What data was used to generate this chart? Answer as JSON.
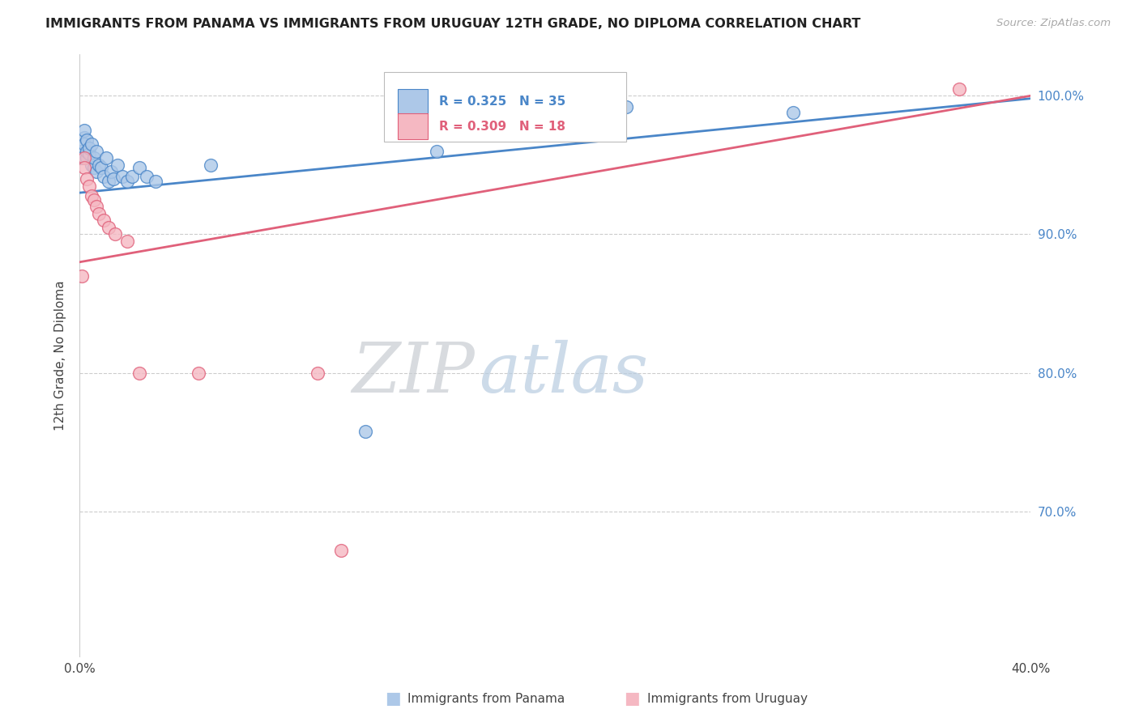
{
  "title": "IMMIGRANTS FROM PANAMA VS IMMIGRANTS FROM URUGUAY 12TH GRADE, NO DIPLOMA CORRELATION CHART",
  "source": "Source: ZipAtlas.com",
  "ylabel_label": "12th Grade, No Diploma",
  "x_min": 0.0,
  "x_max": 0.4,
  "y_min": 0.595,
  "y_max": 1.03,
  "ytick_labels": [
    "100.0%",
    "90.0%",
    "80.0%",
    "70.0%"
  ],
  "ytick_values": [
    1.0,
    0.9,
    0.8,
    0.7
  ],
  "xtick_labels": [
    "0.0%",
    "",
    "",
    "",
    "",
    "40.0%"
  ],
  "xtick_values": [
    0.0,
    0.08,
    0.16,
    0.24,
    0.32,
    0.4
  ],
  "panama_R": 0.325,
  "panama_N": 35,
  "uruguay_R": 0.309,
  "uruguay_N": 18,
  "panama_color": "#adc8e8",
  "panama_line_color": "#4a86c8",
  "uruguay_color": "#f5b8c2",
  "uruguay_line_color": "#e0607a",
  "panama_scatter_x": [
    0.001,
    0.001,
    0.002,
    0.002,
    0.002,
    0.003,
    0.003,
    0.003,
    0.004,
    0.004,
    0.005,
    0.005,
    0.006,
    0.006,
    0.007,
    0.007,
    0.008,
    0.009,
    0.01,
    0.011,
    0.012,
    0.013,
    0.014,
    0.016,
    0.018,
    0.02,
    0.022,
    0.025,
    0.028,
    0.032,
    0.055,
    0.12,
    0.15,
    0.23,
    0.3
  ],
  "panama_scatter_y": [
    0.96,
    0.955,
    0.97,
    0.975,
    0.965,
    0.955,
    0.96,
    0.968,
    0.958,
    0.962,
    0.95,
    0.965,
    0.948,
    0.955,
    0.945,
    0.96,
    0.95,
    0.948,
    0.942,
    0.955,
    0.938,
    0.945,
    0.94,
    0.95,
    0.942,
    0.938,
    0.942,
    0.948,
    0.942,
    0.938,
    0.95,
    0.758,
    0.96,
    0.992,
    0.988
  ],
  "uruguay_scatter_x": [
    0.001,
    0.002,
    0.002,
    0.003,
    0.004,
    0.005,
    0.006,
    0.007,
    0.008,
    0.01,
    0.012,
    0.015,
    0.02,
    0.025,
    0.05,
    0.1,
    0.11,
    0.37
  ],
  "uruguay_scatter_y": [
    0.87,
    0.955,
    0.948,
    0.94,
    0.935,
    0.928,
    0.925,
    0.92,
    0.915,
    0.91,
    0.905,
    0.9,
    0.895,
    0.8,
    0.8,
    0.8,
    0.672,
    1.005
  ],
  "panama_trendline_x": [
    0.0,
    0.4
  ],
  "panama_trendline_y": [
    0.93,
    0.998
  ],
  "uruguay_trendline_x": [
    0.0,
    0.4
  ],
  "uruguay_trendline_y": [
    0.88,
    1.0
  ],
  "watermark_zip": "ZIP",
  "watermark_atlas": "atlas"
}
